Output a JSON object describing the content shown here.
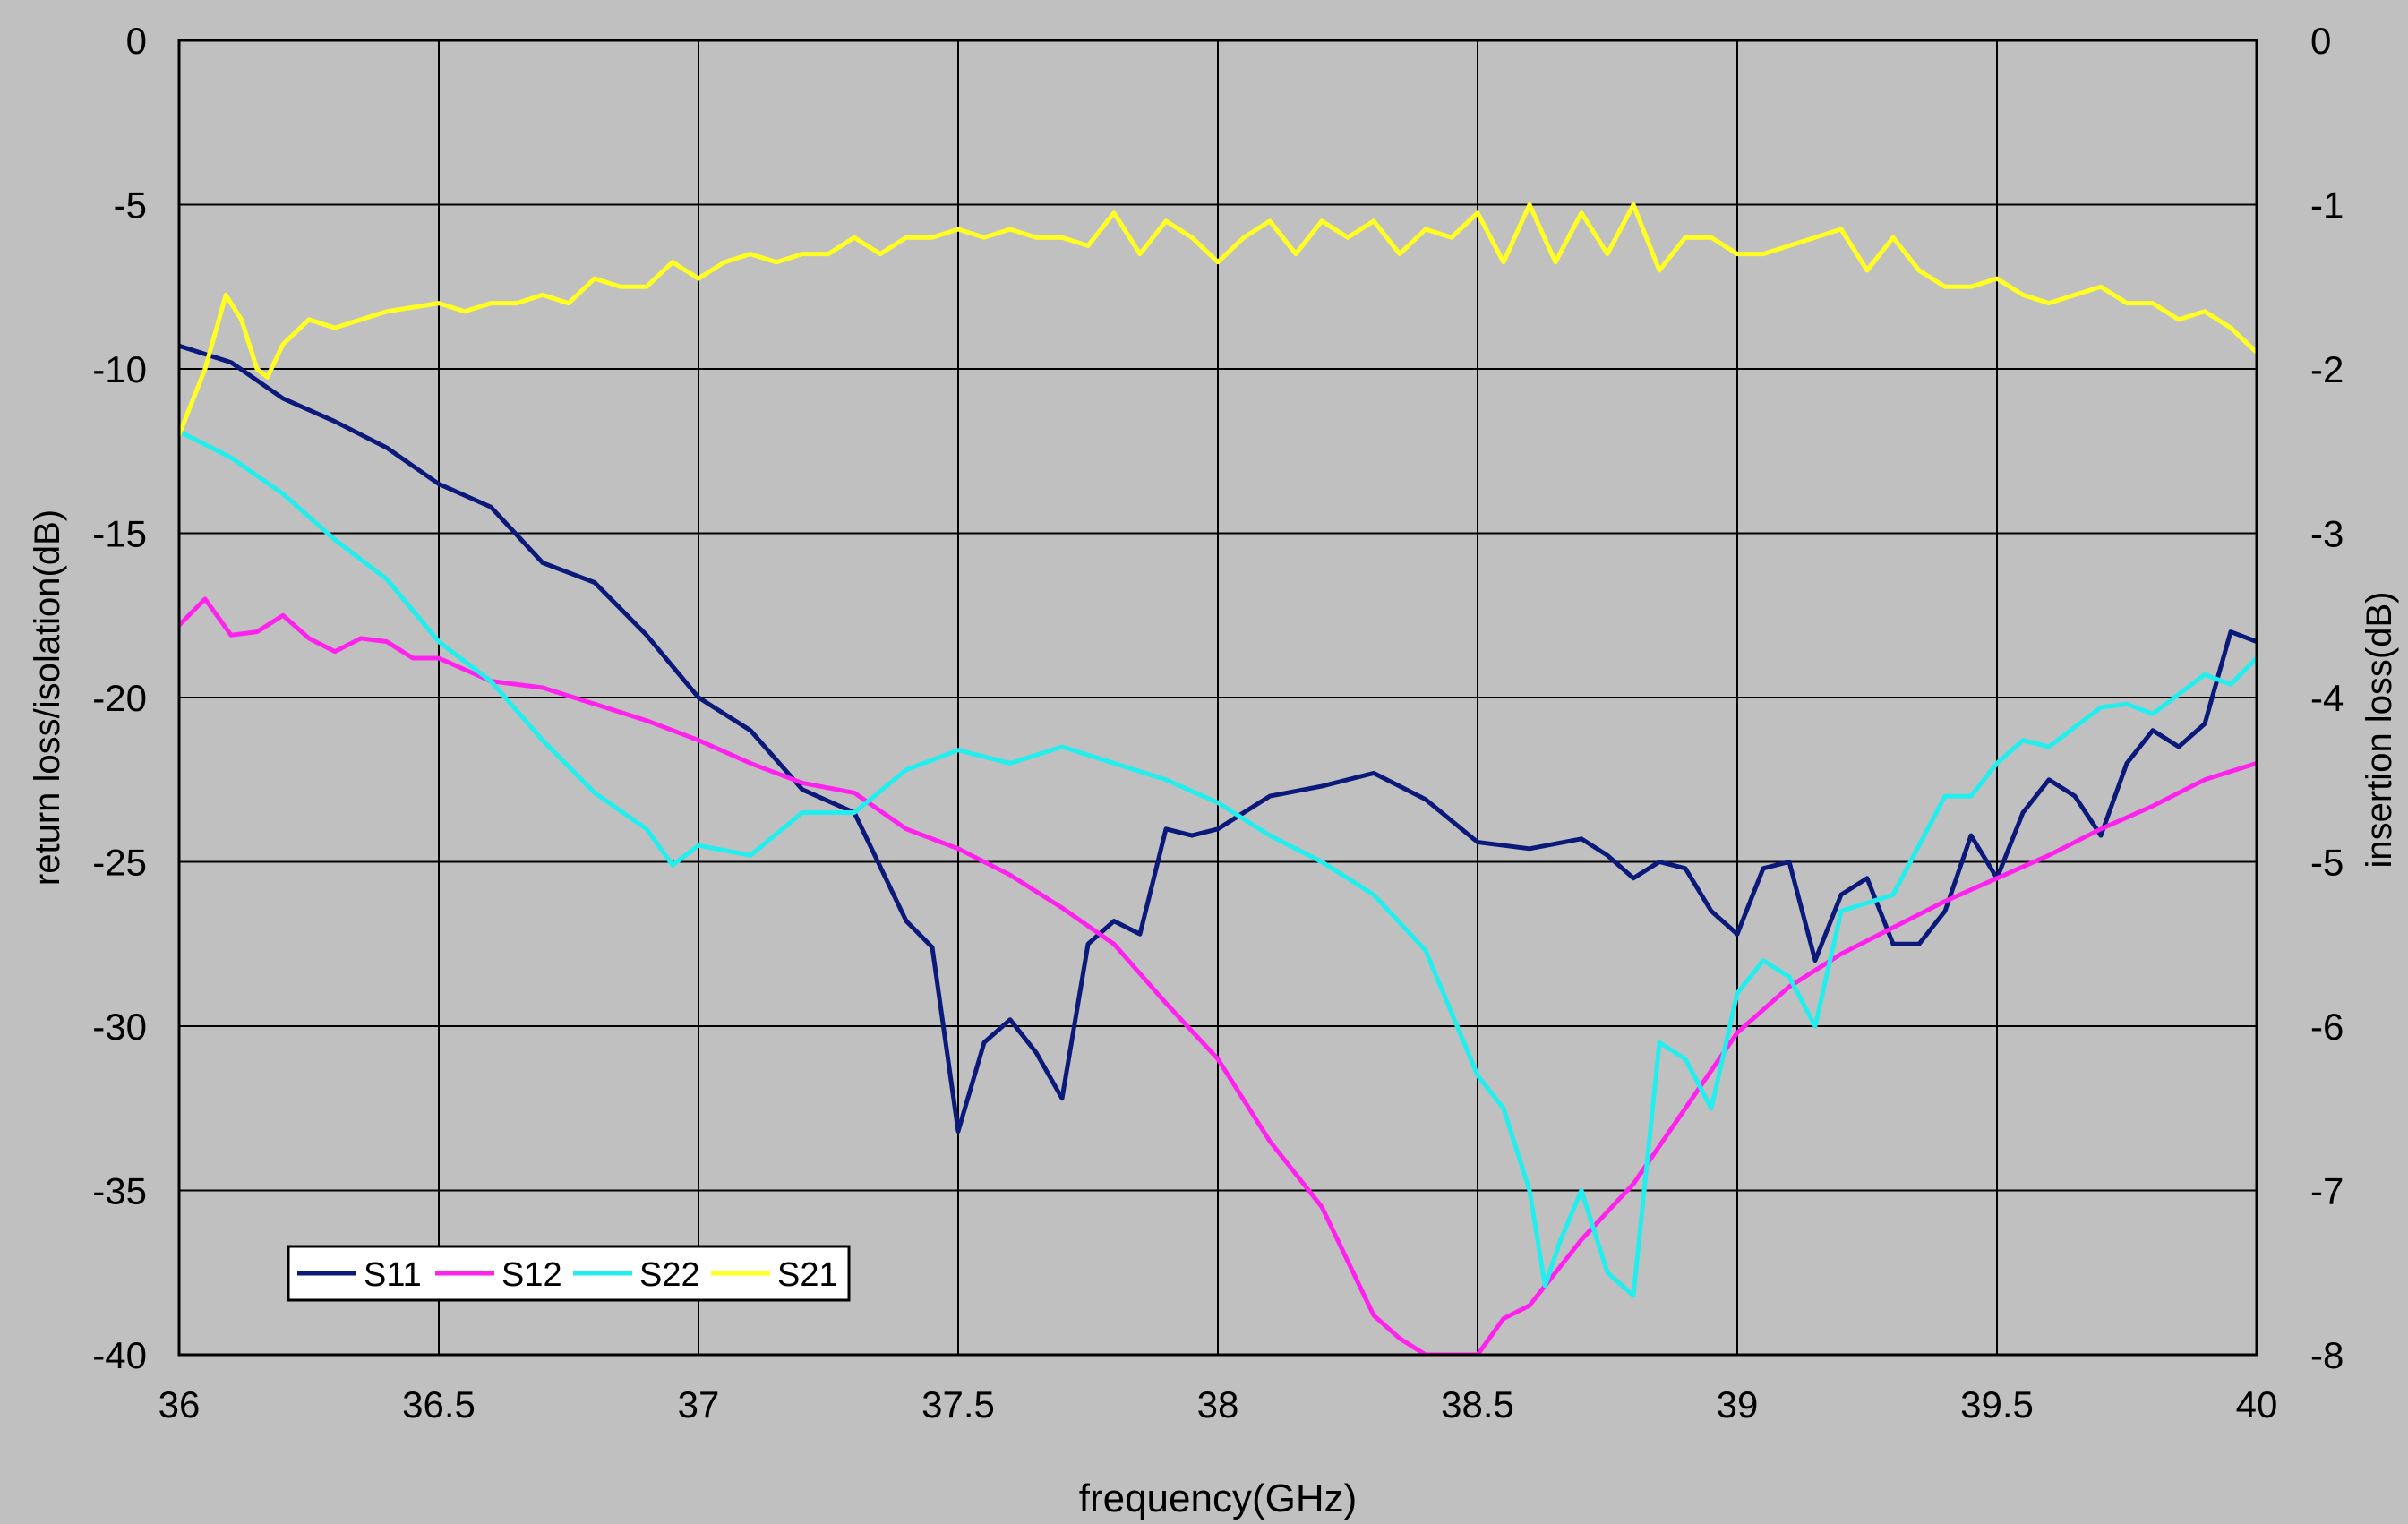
{
  "chart_data": {
    "type": "line",
    "xlabel": "frequency(GHz)",
    "ylabel_left": "return loss/isolation(dB)",
    "ylabel_right": "insertion loss(dB)",
    "xlim": [
      36,
      40
    ],
    "ylim_left": [
      -40,
      0
    ],
    "ylim_right": [
      -8,
      0
    ],
    "x_ticks": [
      "36",
      "36.5",
      "37",
      "37.5",
      "38",
      "38.5",
      "39",
      "39.5",
      "40"
    ],
    "y_ticks_left": [
      "0",
      "-5",
      "-10",
      "-15",
      "-20",
      "-25",
      "-30",
      "-35",
      "-40"
    ],
    "y_ticks_right": [
      "0",
      "-1",
      "-2",
      "-3",
      "-4",
      "-5",
      "-6",
      "-7",
      "-8"
    ],
    "grid": true,
    "legend_position": "bottom-left",
    "series": [
      {
        "name": "S11",
        "color": "#0b1a7a",
        "axis": "left",
        "x": [
          36.0,
          36.1,
          36.2,
          36.3,
          36.4,
          36.5,
          36.6,
          36.7,
          36.8,
          36.9,
          37.0,
          37.1,
          37.2,
          37.3,
          37.4,
          37.45,
          37.5,
          37.55,
          37.6,
          37.65,
          37.7,
          37.75,
          37.8,
          37.85,
          37.9,
          37.95,
          38.0,
          38.1,
          38.2,
          38.3,
          38.4,
          38.5,
          38.6,
          38.7,
          38.75,
          38.8,
          38.85,
          38.9,
          38.95,
          39.0,
          39.05,
          39.1,
          39.15,
          39.2,
          39.25,
          39.3,
          39.35,
          39.4,
          39.45,
          39.5,
          39.55,
          39.6,
          39.65,
          39.7,
          39.75,
          39.8,
          39.85,
          39.9,
          39.95,
          40.0
        ],
        "y": [
          -9.3,
          -9.8,
          -10.9,
          -11.6,
          -12.4,
          -13.5,
          -14.2,
          -15.9,
          -16.5,
          -18.1,
          -20.0,
          -21.0,
          -22.8,
          -23.5,
          -26.8,
          -27.6,
          -33.2,
          -30.5,
          -29.8,
          -30.8,
          -32.2,
          -27.5,
          -26.8,
          -27.2,
          -24.0,
          -24.2,
          -24.0,
          -23.0,
          -22.7,
          -22.3,
          -23.1,
          -24.4,
          -24.6,
          -24.3,
          -24.8,
          -25.5,
          -25.0,
          -25.2,
          -26.5,
          -27.2,
          -25.2,
          -25.0,
          -28.0,
          -26.0,
          -25.5,
          -27.5,
          -27.5,
          -26.5,
          -24.2,
          -25.5,
          -23.5,
          -22.5,
          -23.0,
          -24.2,
          -22.0,
          -21.0,
          -21.5,
          -20.8,
          -18.0,
          -18.3
        ]
      },
      {
        "name": "S12",
        "color": "#ff22ee",
        "axis": "left",
        "x": [
          36.0,
          36.05,
          36.1,
          36.15,
          36.2,
          36.25,
          36.3,
          36.35,
          36.4,
          36.45,
          36.5,
          36.6,
          36.7,
          36.8,
          36.9,
          37.0,
          37.1,
          37.2,
          37.3,
          37.4,
          37.5,
          37.6,
          37.7,
          37.8,
          37.9,
          38.0,
          38.1,
          38.2,
          38.3,
          38.35,
          38.4,
          38.5,
          38.55,
          38.6,
          38.7,
          38.8,
          38.9,
          39.0,
          39.1,
          39.2,
          39.3,
          39.4,
          39.5,
          39.6,
          39.7,
          39.8,
          39.9,
          40.0
        ],
        "y": [
          -17.8,
          -17.0,
          -18.1,
          -18.0,
          -17.5,
          -18.2,
          -18.6,
          -18.2,
          -18.3,
          -18.8,
          -18.8,
          -19.5,
          -19.7,
          -20.2,
          -20.7,
          -21.3,
          -22.0,
          -22.6,
          -22.9,
          -24.0,
          -24.6,
          -25.4,
          -26.4,
          -27.5,
          -29.3,
          -31.0,
          -33.5,
          -35.5,
          -38.8,
          -39.5,
          -40.0,
          -40.0,
          -38.9,
          -38.5,
          -36.5,
          -34.8,
          -32.5,
          -30.2,
          -28.8,
          -27.8,
          -27.0,
          -26.2,
          -25.5,
          -24.8,
          -24.0,
          -23.3,
          -22.5,
          -22.0
        ]
      },
      {
        "name": "S22",
        "color": "#22eeee",
        "axis": "left",
        "x": [
          36.0,
          36.1,
          36.2,
          36.3,
          36.4,
          36.5,
          36.6,
          36.7,
          36.8,
          36.9,
          36.95,
          37.0,
          37.1,
          37.2,
          37.3,
          37.4,
          37.5,
          37.6,
          37.7,
          37.8,
          37.9,
          38.0,
          38.1,
          38.2,
          38.3,
          38.4,
          38.5,
          38.55,
          38.6,
          38.63,
          38.66,
          38.7,
          38.75,
          38.8,
          38.85,
          38.9,
          38.95,
          39.0,
          39.05,
          39.1,
          39.15,
          39.2,
          39.3,
          39.4,
          39.45,
          39.5,
          39.55,
          39.6,
          39.7,
          39.75,
          39.8,
          39.9,
          39.95,
          40.0
        ],
        "y": [
          -11.9,
          -12.7,
          -13.8,
          -15.2,
          -16.4,
          -18.3,
          -19.5,
          -21.3,
          -22.9,
          -24.0,
          -25.1,
          -24.5,
          -24.8,
          -23.5,
          -23.5,
          -22.2,
          -21.6,
          -22.0,
          -21.5,
          -22.0,
          -22.5,
          -23.2,
          -24.2,
          -25.0,
          -26.0,
          -27.7,
          -31.5,
          -32.5,
          -35.0,
          -37.9,
          -36.5,
          -35.0,
          -37.5,
          -38.2,
          -30.5,
          -31.0,
          -32.5,
          -29.0,
          -28.0,
          -28.5,
          -30.0,
          -26.5,
          -26.0,
          -23.0,
          -23.0,
          -22.0,
          -21.3,
          -21.5,
          -20.3,
          -20.2,
          -20.5,
          -19.3,
          -19.6,
          -18.8
        ]
      },
      {
        "name": "S21",
        "color": "#ffff22",
        "axis": "right",
        "x": [
          36.0,
          36.05,
          36.09,
          36.12,
          36.15,
          36.17,
          36.2,
          36.25,
          36.3,
          36.35,
          36.4,
          36.5,
          36.55,
          36.6,
          36.65,
          36.7,
          36.75,
          36.8,
          36.85,
          36.9,
          36.95,
          37.0,
          37.05,
          37.1,
          37.15,
          37.2,
          37.25,
          37.3,
          37.35,
          37.4,
          37.45,
          37.5,
          37.55,
          37.6,
          37.65,
          37.7,
          37.75,
          37.8,
          37.85,
          37.9,
          37.95,
          38.0,
          38.05,
          38.1,
          38.15,
          38.2,
          38.25,
          38.3,
          38.35,
          38.4,
          38.45,
          38.5,
          38.55,
          38.6,
          38.65,
          38.7,
          38.75,
          38.8,
          38.85,
          38.9,
          38.95,
          39.0,
          39.05,
          39.1,
          39.15,
          39.2,
          39.25,
          39.3,
          39.35,
          39.4,
          39.45,
          39.5,
          39.55,
          39.6,
          39.65,
          39.7,
          39.75,
          39.8,
          39.85,
          39.9,
          39.95,
          40.0
        ],
        "y": [
          -2.4,
          -2.0,
          -1.55,
          -1.7,
          -2.0,
          -2.05,
          -1.85,
          -1.7,
          -1.75,
          -1.7,
          -1.65,
          -1.6,
          -1.65,
          -1.6,
          -1.6,
          -1.55,
          -1.6,
          -1.45,
          -1.5,
          -1.5,
          -1.35,
          -1.45,
          -1.35,
          -1.3,
          -1.35,
          -1.3,
          -1.3,
          -1.2,
          -1.3,
          -1.2,
          -1.2,
          -1.15,
          -1.2,
          -1.15,
          -1.2,
          -1.2,
          -1.25,
          -1.05,
          -1.3,
          -1.1,
          -1.2,
          -1.35,
          -1.2,
          -1.1,
          -1.3,
          -1.1,
          -1.2,
          -1.1,
          -1.3,
          -1.15,
          -1.2,
          -1.05,
          -1.35,
          -1.0,
          -1.35,
          -1.05,
          -1.3,
          -1.0,
          -1.4,
          -1.2,
          -1.2,
          -1.3,
          -1.3,
          -1.25,
          -1.2,
          -1.15,
          -1.4,
          -1.2,
          -1.4,
          -1.5,
          -1.5,
          -1.45,
          -1.55,
          -1.6,
          -1.55,
          -1.5,
          -1.6,
          -1.6,
          -1.7,
          -1.65,
          -1.75,
          -1.9
        ]
      }
    ]
  }
}
